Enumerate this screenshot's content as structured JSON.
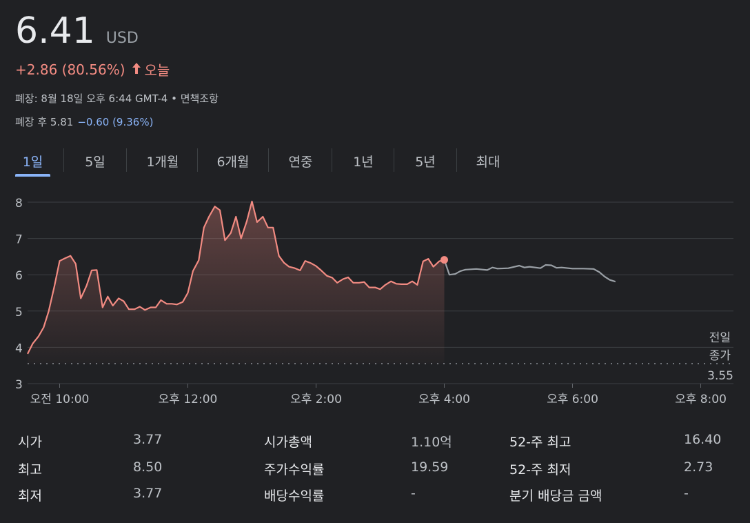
{
  "quote": {
    "price": "6.41",
    "currency": "USD",
    "change": "+2.86 (80.56%)",
    "arrow": "arrow-up",
    "period": "오늘",
    "close_info": "폐장: 8월 18일 오후 6:44 GMT-4 • 면책조항",
    "after_label": "폐장 후 5.81",
    "after_change": "−0.60 (9.36%)"
  },
  "tabs": [
    "1일",
    "5일",
    "1개월",
    "6개월",
    "연중",
    "1년",
    "5년",
    "최대"
  ],
  "active_tab": 0,
  "colors": {
    "up": "#f28b82",
    "down": "#8ab4f8",
    "after_hours": "#9aa0a6",
    "grid": "#3c4043"
  },
  "chart_data": {
    "type": "line",
    "x_unit": "hours",
    "xlim": [
      9.5,
      20.5
    ],
    "ylim": [
      3,
      8.2
    ],
    "yticks": [
      3,
      4,
      5,
      6,
      7,
      8
    ],
    "xticks": [
      {
        "value": 10,
        "label": "오전 10:00"
      },
      {
        "value": 12,
        "label": "오후 12:00"
      },
      {
        "value": 14,
        "label": "오후 2:00"
      },
      {
        "value": 16,
        "label": "오후 4:00"
      },
      {
        "value": 18,
        "label": "오후 6:00"
      },
      {
        "value": 20,
        "label": "오후 8:00"
      }
    ],
    "reference_line": {
      "value": 3.55,
      "label_line1": "전일",
      "label_line2": "종가",
      "label_value": "3.55"
    },
    "series": [
      {
        "key": "regular",
        "x": [
          9.5,
          9.58,
          9.67,
          9.75,
          9.83,
          9.92,
          10.0,
          10.08,
          10.17,
          10.25,
          10.33,
          10.42,
          10.5,
          10.58,
          10.67,
          10.75,
          10.83,
          10.92,
          11.0,
          11.08,
          11.17,
          11.25,
          11.33,
          11.42,
          11.5,
          11.58,
          11.67,
          11.75,
          11.83,
          11.92,
          12.0,
          12.08,
          12.17,
          12.25,
          12.33,
          12.42,
          12.5,
          12.58,
          12.67,
          12.75,
          12.83,
          12.92,
          13.0,
          13.08,
          13.17,
          13.25,
          13.33,
          13.42,
          13.5,
          13.58,
          13.67,
          13.75,
          13.83,
          13.92,
          14.0,
          14.08,
          14.17,
          14.25,
          14.33,
          14.42,
          14.5,
          14.58,
          14.67,
          14.75,
          14.83,
          14.92,
          15.0,
          15.08,
          15.17,
          15.25,
          15.33,
          15.42,
          15.5,
          15.58,
          15.67,
          15.75,
          15.83,
          15.92,
          16.0
        ],
        "y": [
          3.82,
          4.1,
          4.3,
          4.55,
          5.0,
          5.7,
          6.38,
          6.45,
          6.52,
          6.3,
          5.35,
          5.7,
          6.12,
          6.13,
          5.1,
          5.4,
          5.15,
          5.35,
          5.27,
          5.05,
          5.05,
          5.12,
          5.03,
          5.1,
          5.1,
          5.3,
          5.2,
          5.2,
          5.18,
          5.25,
          5.5,
          6.1,
          6.4,
          7.3,
          7.6,
          7.88,
          7.78,
          6.95,
          7.15,
          7.6,
          7.0,
          7.48,
          8.02,
          7.45,
          7.6,
          7.3,
          7.3,
          6.52,
          6.33,
          6.22,
          6.18,
          6.12,
          6.38,
          6.32,
          6.24,
          6.12,
          5.97,
          5.92,
          5.78,
          5.88,
          5.93,
          5.78,
          5.78,
          5.8,
          5.65,
          5.65,
          5.6,
          5.72,
          5.82,
          5.75,
          5.74,
          5.74,
          5.82,
          5.72,
          6.37,
          6.44,
          6.22,
          6.37,
          6.41
        ]
      },
      {
        "key": "after_hours",
        "x": [
          16.0,
          16.08,
          16.17,
          16.25,
          16.33,
          16.5,
          16.67,
          16.75,
          16.83,
          17.0,
          17.17,
          17.25,
          17.33,
          17.5,
          17.58,
          17.67,
          17.75,
          17.83,
          18.0,
          18.17,
          18.33,
          18.42,
          18.5,
          18.58,
          18.67
        ],
        "y": [
          6.41,
          6.0,
          6.02,
          6.1,
          6.14,
          6.16,
          6.13,
          6.2,
          6.17,
          6.18,
          6.25,
          6.2,
          6.22,
          6.18,
          6.27,
          6.26,
          6.19,
          6.2,
          6.17,
          6.17,
          6.16,
          6.07,
          5.95,
          5.86,
          5.81
        ]
      }
    ]
  },
  "stats": [
    {
      "label": "시가",
      "value": "3.77"
    },
    {
      "label": "최고",
      "value": "8.50"
    },
    {
      "label": "최저",
      "value": "3.77"
    },
    {
      "label": "시가총액",
      "value": "1.10억"
    },
    {
      "label": "주가수익률",
      "value": "19.59"
    },
    {
      "label": "배당수익률",
      "value": "-"
    },
    {
      "label": "52-주 최고",
      "value": "16.40"
    },
    {
      "label": "52-주 최저",
      "value": "2.73"
    },
    {
      "label": "분기 배당금 금액",
      "value": "-"
    }
  ]
}
